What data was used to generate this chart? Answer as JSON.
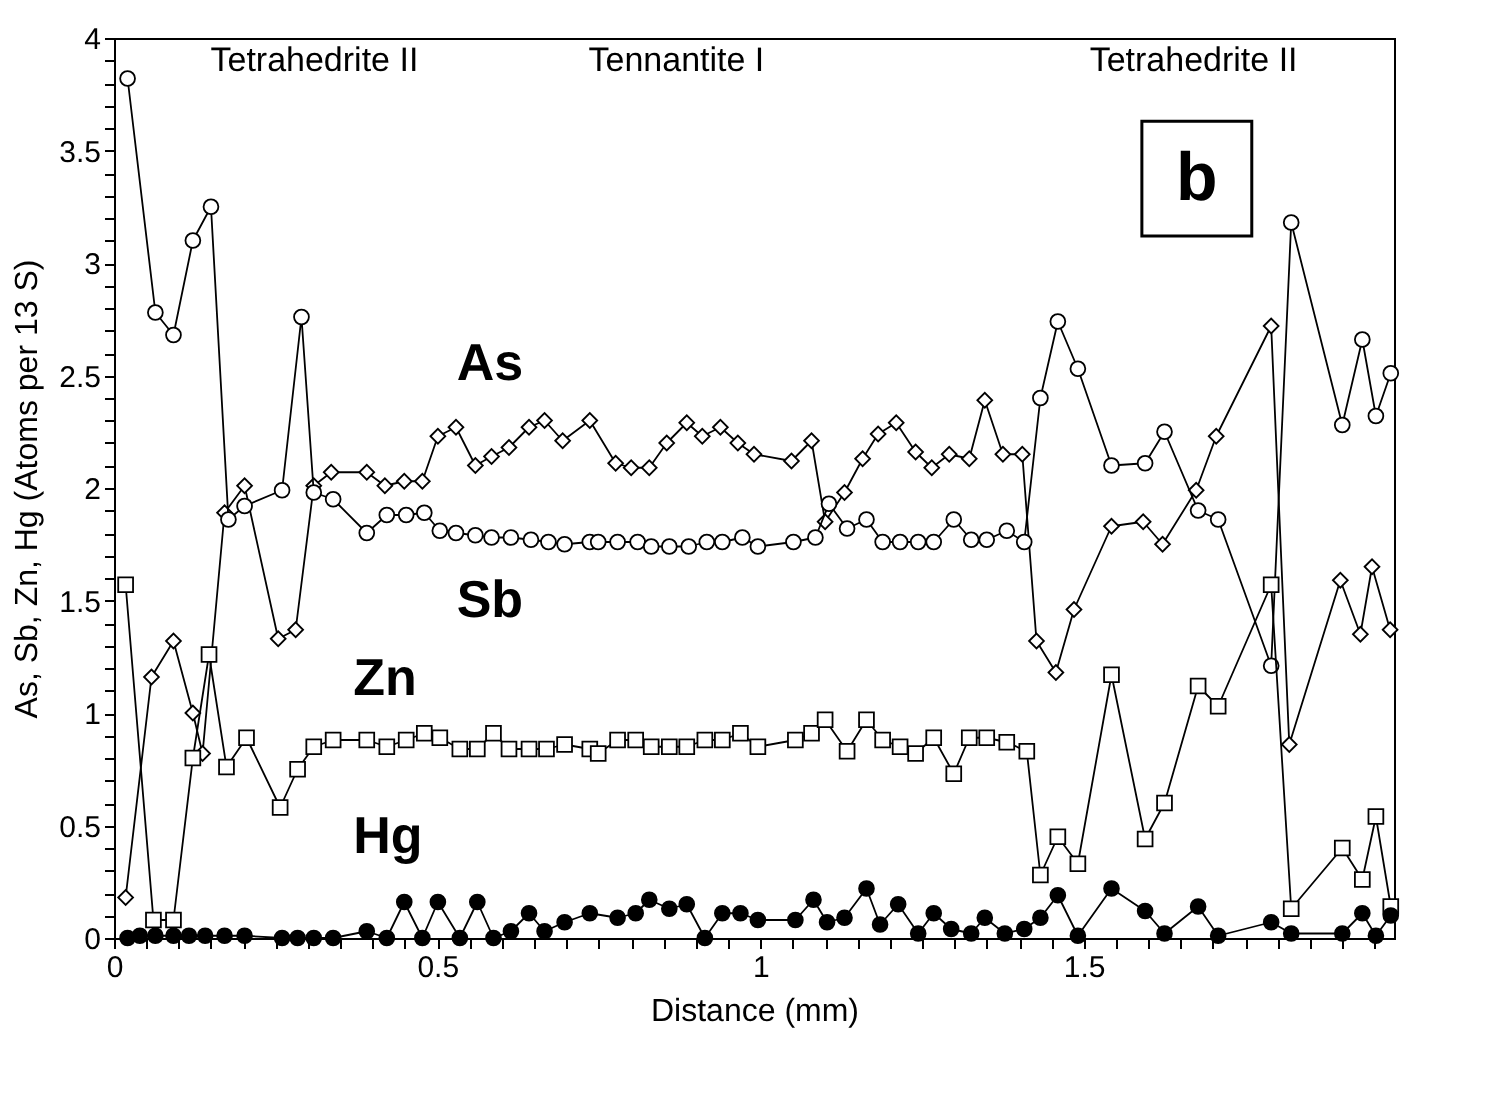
{
  "chart_data": {
    "type": "line",
    "xlabel": "Distance (mm)",
    "ylabel": "As, Sb, Zn, Hg (Atoms per 13 S)",
    "xlim": [
      0,
      1.98
    ],
    "ylim": [
      0,
      4
    ],
    "xticks": [
      0,
      {
        "value": 0.05,
        "label": null
      },
      {
        "value": 0.1,
        "label": null
      },
      {
        "value": 0.15,
        "label": null
      },
      {
        "value": 0.2,
        "label": null
      },
      {
        "value": 0.25,
        "label": null
      },
      {
        "value": 0.3,
        "label": null
      },
      {
        "value": 0.35,
        "label": null
      },
      {
        "value": 0.4,
        "label": null
      },
      {
        "value": 0.45,
        "label": null
      },
      0.5,
      {
        "value": 0.55,
        "label": null
      },
      {
        "value": 0.6,
        "label": null
      },
      {
        "value": 0.65,
        "label": null
      },
      {
        "value": 0.7,
        "label": null
      },
      {
        "value": 0.75,
        "label": null
      },
      {
        "value": 0.8,
        "label": null
      },
      {
        "value": 0.85,
        "label": null
      },
      {
        "value": 0.9,
        "label": null
      },
      {
        "value": 0.95,
        "label": null
      },
      1,
      {
        "value": 1.05,
        "label": null
      },
      {
        "value": 1.1,
        "label": null
      },
      {
        "value": 1.15,
        "label": null
      },
      {
        "value": 1.2,
        "label": null
      },
      {
        "value": 1.25,
        "label": null
      },
      {
        "value": 1.3,
        "label": null
      },
      {
        "value": 1.35,
        "label": null
      },
      {
        "value": 1.4,
        "label": null
      },
      {
        "value": 1.45,
        "label": null
      },
      1.5,
      {
        "value": 1.55,
        "label": null
      },
      {
        "value": 1.6,
        "label": null
      },
      {
        "value": 1.65,
        "label": null
      },
      {
        "value": 1.7,
        "label": null
      },
      {
        "value": 1.75,
        "label": null
      },
      {
        "value": 1.8,
        "label": null
      },
      {
        "value": 1.85,
        "label": null
      },
      {
        "value": 1.9,
        "label": null
      },
      {
        "value": 1.95,
        "label": null
      }
    ],
    "yticks": [
      0,
      {
        "value": 0.1,
        "label": null
      },
      {
        "value": 0.2,
        "label": null
      },
      {
        "value": 0.3,
        "label": null
      },
      {
        "value": 0.4,
        "label": null
      },
      0.5,
      {
        "value": 0.6,
        "label": null
      },
      {
        "value": 0.7,
        "label": null
      },
      {
        "value": 0.8,
        "label": null
      },
      {
        "value": 0.9,
        "label": null
      },
      1,
      {
        "value": 1.1,
        "label": null
      },
      {
        "value": 1.2,
        "label": null
      },
      {
        "value": 1.3,
        "label": null
      },
      {
        "value": 1.4,
        "label": null
      },
      1.5,
      {
        "value": 1.6,
        "label": null
      },
      {
        "value": 1.7,
        "label": null
      },
      {
        "value": 1.8,
        "label": null
      },
      {
        "value": 1.9,
        "label": null
      },
      2,
      {
        "value": 2.1,
        "label": null
      },
      {
        "value": 2.2,
        "label": null
      },
      {
        "value": 2.3,
        "label": null
      },
      {
        "value": 2.4,
        "label": null
      },
      2.5,
      {
        "value": 2.6,
        "label": null
      },
      {
        "value": 2.7,
        "label": null
      },
      {
        "value": 2.8,
        "label": null
      },
      {
        "value": 2.9,
        "label": null
      },
      3,
      {
        "value": 3.1,
        "label": null
      },
      {
        "value": 3.2,
        "label": null
      },
      {
        "value": 3.3,
        "label": null
      },
      {
        "value": 3.4,
        "label": null
      },
      3.5,
      {
        "value": 3.6,
        "label": null
      },
      {
        "value": 3.7,
        "label": null
      },
      {
        "value": 3.8,
        "label": null
      },
      {
        "value": 3.9,
        "label": null
      },
      4
    ],
    "grid": false,
    "line_style": "solid",
    "annotations": [
      "Tetrahedrite II",
      "Tennantite  I",
      "Tetrahedrite II",
      "b"
    ],
    "series": [
      {
        "name": "As",
        "color": "#000000",
        "marker": "diamond",
        "x": [
          0.018,
          0.058,
          0.092,
          0.122,
          0.137,
          0.171,
          0.202,
          0.254,
          0.281,
          0.309,
          0.336,
          0.391,
          0.419,
          0.449,
          0.477,
          0.501,
          0.529,
          0.559,
          0.584,
          0.611,
          0.642,
          0.666,
          0.694,
          0.736,
          0.776,
          0.8,
          0.828,
          0.855,
          0.886,
          0.91,
          0.938,
          0.965,
          0.99,
          1.048,
          1.079,
          1.1,
          1.13,
          1.158,
          1.182,
          1.21,
          1.24,
          1.265,
          1.292,
          1.323,
          1.347,
          1.375,
          1.405,
          1.427,
          1.457,
          1.485,
          1.543,
          1.592,
          1.622,
          1.674,
          1.705,
          1.79,
          1.818,
          1.897,
          1.928,
          1.946,
          1.974
        ],
        "values": [
          0.18,
          1.16,
          1.32,
          1.0,
          0.82,
          1.89,
          2.01,
          1.33,
          1.37,
          2.01,
          2.07,
          2.07,
          2.01,
          2.03,
          2.03,
          2.23,
          2.27,
          2.1,
          2.14,
          2.18,
          2.27,
          2.3,
          2.21,
          2.3,
          2.11,
          2.09,
          2.09,
          2.2,
          2.29,
          2.23,
          2.27,
          2.2,
          2.15,
          2.12,
          2.21,
          1.85,
          1.98,
          2.13,
          2.24,
          2.29,
          2.16,
          2.09,
          2.15,
          2.13,
          2.39,
          2.15,
          2.15,
          1.32,
          1.18,
          1.46,
          1.83,
          1.85,
          1.75,
          1.99,
          2.23,
          2.72,
          0.86,
          1.59,
          1.35,
          1.65,
          1.37
        ]
      },
      {
        "name": "Sb",
        "color": "#000000",
        "marker": "circle",
        "x": [
          0.021,
          0.064,
          0.092,
          0.122,
          0.15,
          0.177,
          0.202,
          0.26,
          0.29,
          0.309,
          0.339,
          0.391,
          0.422,
          0.452,
          0.48,
          0.504,
          0.529,
          0.559,
          0.584,
          0.614,
          0.645,
          0.672,
          0.697,
          0.736,
          0.749,
          0.779,
          0.81,
          0.831,
          0.859,
          0.889,
          0.917,
          0.941,
          0.972,
          0.996,
          1.051,
          1.085,
          1.106,
          1.134,
          1.164,
          1.189,
          1.216,
          1.244,
          1.268,
          1.299,
          1.326,
          1.35,
          1.381,
          1.408,
          1.433,
          1.46,
          1.491,
          1.543,
          1.595,
          1.625,
          1.677,
          1.708,
          1.79,
          1.821,
          1.9,
          1.931,
          1.952,
          1.975
        ],
        "values": [
          3.82,
          2.78,
          2.68,
          3.1,
          3.25,
          1.86,
          1.92,
          1.99,
          2.76,
          1.98,
          1.95,
          1.8,
          1.88,
          1.88,
          1.89,
          1.81,
          1.8,
          1.79,
          1.78,
          1.78,
          1.77,
          1.76,
          1.75,
          1.76,
          1.76,
          1.76,
          1.76,
          1.74,
          1.74,
          1.74,
          1.76,
          1.76,
          1.78,
          1.74,
          1.76,
          1.78,
          1.93,
          1.82,
          1.86,
          1.76,
          1.76,
          1.76,
          1.76,
          1.86,
          1.77,
          1.77,
          1.81,
          1.76,
          2.4,
          2.74,
          2.53,
          2.1,
          2.11,
          2.25,
          1.9,
          1.86,
          1.21,
          3.18,
          2.28,
          2.66,
          2.32,
          2.51
        ]
      },
      {
        "name": "Zn",
        "color": "#000000",
        "marker": "square",
        "x": [
          0.018,
          0.061,
          0.092,
          0.122,
          0.147,
          0.174,
          0.205,
          0.257,
          0.284,
          0.309,
          0.339,
          0.391,
          0.422,
          0.452,
          0.48,
          0.504,
          0.535,
          0.562,
          0.587,
          0.611,
          0.642,
          0.669,
          0.697,
          0.736,
          0.749,
          0.779,
          0.807,
          0.831,
          0.859,
          0.886,
          0.914,
          0.941,
          0.969,
          0.996,
          1.054,
          1.079,
          1.1,
          1.134,
          1.164,
          1.189,
          1.216,
          1.24,
          1.268,
          1.299,
          1.323,
          1.35,
          1.381,
          1.412,
          1.433,
          1.46,
          1.491,
          1.543,
          1.595,
          1.625,
          1.677,
          1.708,
          1.79,
          1.821,
          1.9,
          1.931,
          1.952,
          1.975
        ],
        "values": [
          1.57,
          0.08,
          0.08,
          0.8,
          1.26,
          0.76,
          0.89,
          0.58,
          0.75,
          0.85,
          0.88,
          0.88,
          0.85,
          0.88,
          0.91,
          0.89,
          0.84,
          0.84,
          0.91,
          0.84,
          0.84,
          0.84,
          0.86,
          0.84,
          0.82,
          0.88,
          0.88,
          0.85,
          0.85,
          0.85,
          0.88,
          0.88,
          0.91,
          0.85,
          0.88,
          0.91,
          0.97,
          0.83,
          0.97,
          0.88,
          0.85,
          0.82,
          0.89,
          0.73,
          0.89,
          0.89,
          0.87,
          0.83,
          0.28,
          0.45,
          0.33,
          1.17,
          0.44,
          0.6,
          1.12,
          1.03,
          1.57,
          0.13,
          0.4,
          0.26,
          0.54,
          0.14
        ]
      },
      {
        "name": "Hg",
        "color": "#000000",
        "marker": "circle",
        "x": [
          0.021,
          0.04,
          0.064,
          0.092,
          0.116,
          0.141,
          0.171,
          0.202,
          0.26,
          0.284,
          0.309,
          0.339,
          0.391,
          0.422,
          0.449,
          0.477,
          0.501,
          0.535,
          0.562,
          0.587,
          0.614,
          0.642,
          0.666,
          0.697,
          0.736,
          0.779,
          0.807,
          0.828,
          0.859,
          0.886,
          0.914,
          0.941,
          0.969,
          0.996,
          1.054,
          1.082,
          1.103,
          1.13,
          1.164,
          1.185,
          1.213,
          1.244,
          1.268,
          1.295,
          1.326,
          1.347,
          1.378,
          1.408,
          1.433,
          1.46,
          1.491,
          1.543,
          1.595,
          1.625,
          1.677,
          1.708,
          1.79,
          1.821,
          1.9,
          1.931,
          1.952,
          1.975
        ],
        "values": [
          0.0,
          0.01,
          0.01,
          0.01,
          0.01,
          0.01,
          0.01,
          0.01,
          0.0,
          0.0,
          0.0,
          0.0,
          0.03,
          0.0,
          0.16,
          0.0,
          0.16,
          0.0,
          0.16,
          0.0,
          0.03,
          0.11,
          0.03,
          0.07,
          0.11,
          0.09,
          0.11,
          0.17,
          0.13,
          0.15,
          0.0,
          0.11,
          0.11,
          0.08,
          0.08,
          0.17,
          0.07,
          0.09,
          0.22,
          0.06,
          0.15,
          0.02,
          0.11,
          0.04,
          0.02,
          0.09,
          0.02,
          0.04,
          0.09,
          0.19,
          0.01,
          0.22,
          0.12,
          0.02,
          0.14,
          0.01,
          0.07,
          0.02,
          0.02,
          0.11,
          0.01,
          0.1
        ]
      }
    ]
  }
}
